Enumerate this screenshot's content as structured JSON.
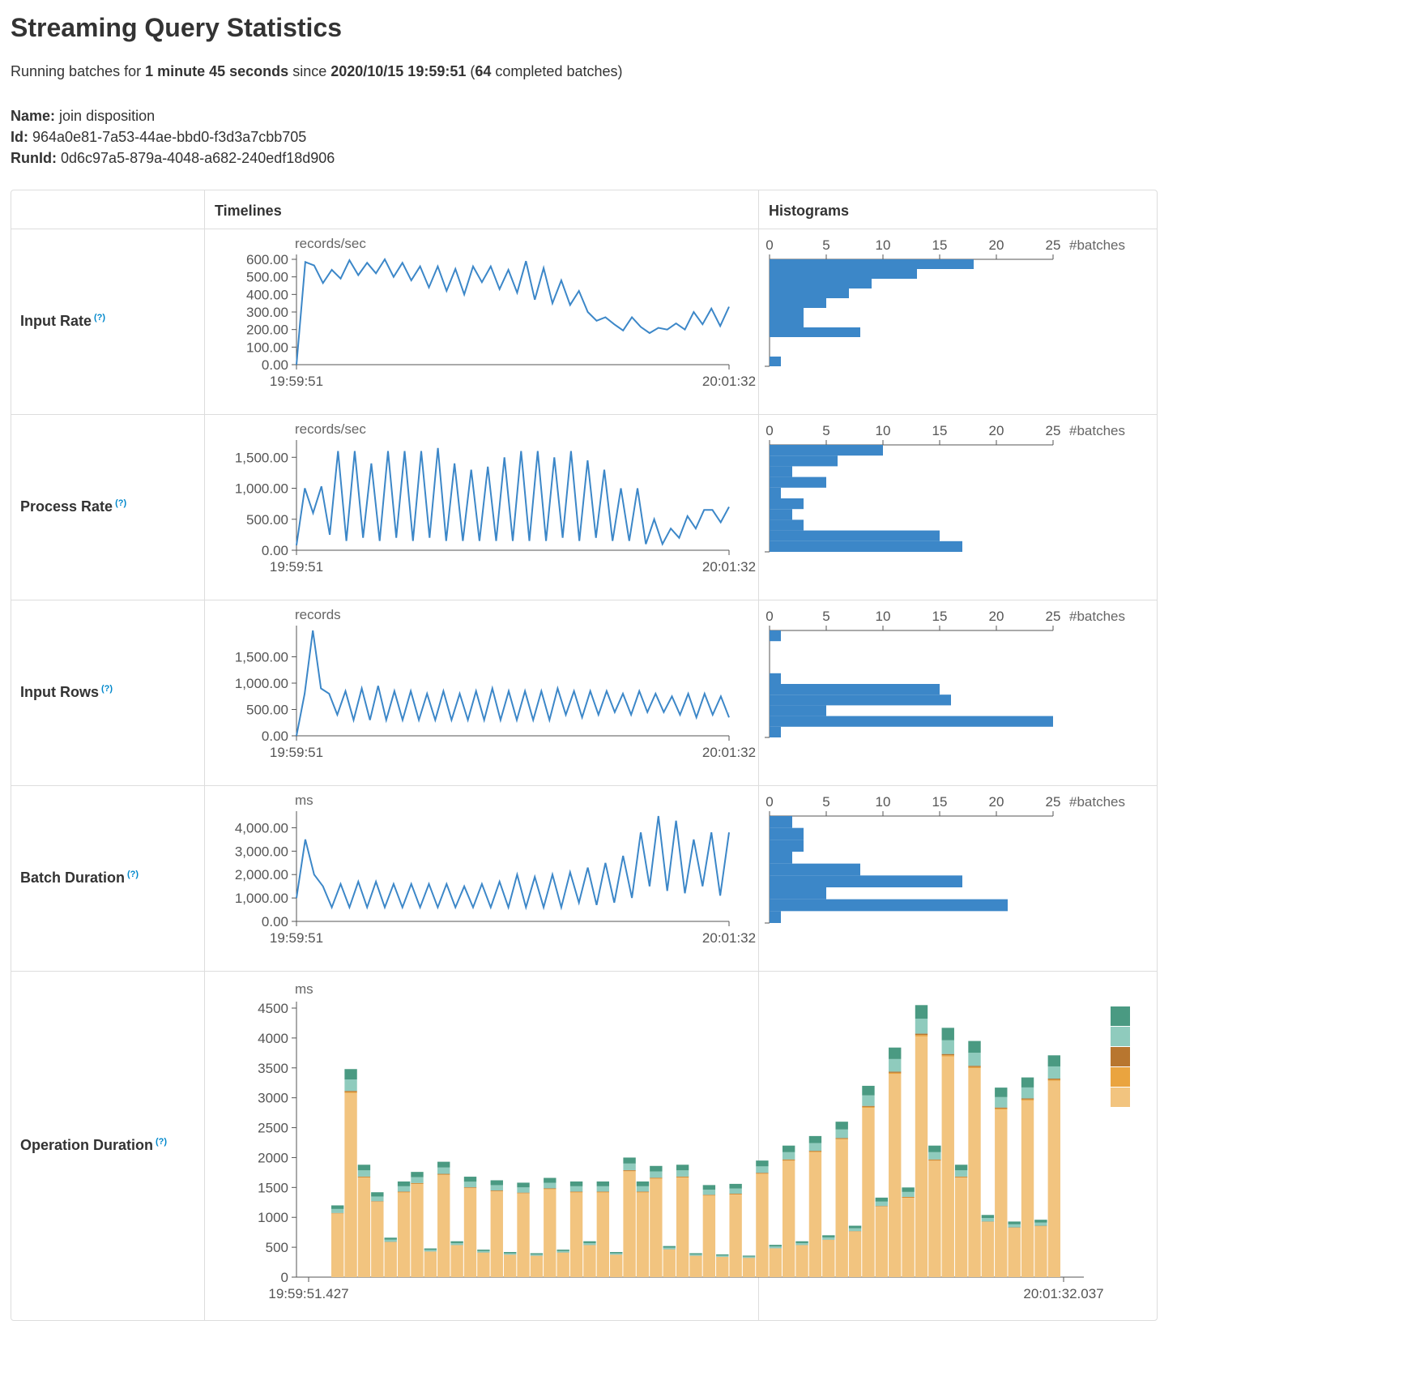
{
  "page": {
    "title": "Streaming Query Statistics",
    "summary": {
      "prefix": "Running batches for ",
      "duration": "1 minute 45 seconds",
      "since_label": " since ",
      "since": "2020/10/15 19:59:51",
      "open_paren": " (",
      "completed": "64",
      "suffix": " completed batches)"
    },
    "name_label": "Name:",
    "name_value": "join disposition",
    "id_label": "Id:",
    "id_value": "964a0e81-7a53-44ae-bbd0-f3d3a7cbb705",
    "runid_label": "RunId:",
    "runid_value": "0d6c97a5-879a-4048-a682-240edf18d906"
  },
  "table": {
    "col_timelines": "Timelines",
    "col_histograms": "Histograms",
    "help_mark": "(?)",
    "rows": [
      {
        "label": "Input Rate"
      },
      {
        "label": "Process Rate"
      },
      {
        "label": "Input Rows"
      },
      {
        "label": "Batch Duration"
      },
      {
        "label": "Operation Duration"
      }
    ]
  },
  "colors": {
    "line": "#3c87c8",
    "bar": "#3c87c8",
    "border": "#dddddd",
    "axis": "#555555",
    "stack": [
      "#f2c47f",
      "#eaa43f",
      "#b8762f",
      "#8fcbbd",
      "#4a9a82"
    ]
  },
  "chart_data": [
    {
      "type": "line",
      "name": "Input Rate",
      "ylabel": "records/sec",
      "x_tick_labels": [
        "19:59:51",
        "20:01:32"
      ],
      "ylim": [
        0,
        600
      ],
      "y_ticks": [
        0,
        100,
        200,
        300,
        400,
        500,
        600
      ],
      "y_tick_labels": [
        "0.00",
        "100.00",
        "200.00",
        "300.00",
        "400.00",
        "500.00",
        "600.00"
      ],
      "values": [
        0,
        585,
        565,
        465,
        540,
        490,
        595,
        510,
        580,
        520,
        600,
        500,
        580,
        480,
        560,
        440,
        560,
        420,
        545,
        400,
        560,
        470,
        560,
        430,
        540,
        410,
        590,
        370,
        550,
        350,
        480,
        340,
        420,
        300,
        250,
        270,
        230,
        195,
        270,
        215,
        180,
        210,
        200,
        235,
        200,
        300,
        230,
        320,
        220,
        330
      ]
    },
    {
      "type": "line",
      "name": "Process Rate",
      "ylabel": "records/sec",
      "x_tick_labels": [
        "19:59:51",
        "20:01:32"
      ],
      "ylim": [
        0,
        1700
      ],
      "y_ticks": [
        0,
        500,
        1000,
        1500
      ],
      "y_tick_labels": [
        "0.00",
        "500.00",
        "1,000.00",
        "1,500.00"
      ],
      "values": [
        80,
        1000,
        600,
        1030,
        250,
        1600,
        150,
        1600,
        200,
        1400,
        150,
        1600,
        200,
        1600,
        150,
        1600,
        200,
        1650,
        150,
        1400,
        150,
        1300,
        150,
        1350,
        150,
        1500,
        150,
        1600,
        150,
        1600,
        150,
        1500,
        200,
        1600,
        150,
        1450,
        200,
        1300,
        150,
        1000,
        150,
        1000,
        100,
        500,
        100,
        350,
        200,
        550,
        350,
        650,
        650,
        450,
        700
      ]
    },
    {
      "type": "line",
      "name": "Input Rows",
      "ylabel": "records",
      "x_tick_labels": [
        "19:59:51",
        "20:01:32"
      ],
      "ylim": [
        0,
        2000
      ],
      "y_ticks": [
        0,
        500,
        1000,
        1500
      ],
      "y_tick_labels": [
        "0.00",
        "500.00",
        "1,000.00",
        "1,500.00"
      ],
      "values": [
        0,
        800,
        2000,
        900,
        800,
        400,
        850,
        300,
        900,
        300,
        950,
        300,
        850,
        300,
        850,
        300,
        800,
        300,
        850,
        300,
        800,
        300,
        850,
        300,
        900,
        300,
        850,
        300,
        850,
        300,
        850,
        300,
        900,
        400,
        850,
        350,
        850,
        400,
        850,
        450,
        800,
        400,
        850,
        450,
        800,
        450,
        750,
        400,
        800,
        350,
        800,
        400,
        750,
        350
      ]
    },
    {
      "type": "line",
      "name": "Batch Duration",
      "ylabel": "ms",
      "x_tick_labels": [
        "19:59:51",
        "20:01:32"
      ],
      "ylim": [
        0,
        4500
      ],
      "y_ticks": [
        0,
        1000,
        2000,
        3000,
        4000
      ],
      "y_tick_labels": [
        "0.00",
        "1,000.00",
        "2,000.00",
        "3,000.00",
        "4,000.00"
      ],
      "values": [
        1000,
        3500,
        2000,
        1500,
        600,
        1600,
        600,
        1700,
        600,
        1700,
        600,
        1600,
        600,
        1600,
        600,
        1600,
        600,
        1600,
        600,
        1500,
        600,
        1600,
        600,
        1700,
        600,
        2000,
        600,
        1900,
        600,
        2000,
        600,
        2100,
        800,
        2300,
        700,
        2500,
        800,
        2800,
        1000,
        3800,
        1500,
        4500,
        1300,
        4300,
        1200,
        3500,
        1500,
        3800,
        1100,
        3800
      ]
    },
    {
      "type": "bar",
      "name": "Operation Duration",
      "ylabel": "ms",
      "x_tick_labels": [
        "19:59:51.427",
        "20:01:32.037"
      ],
      "ylim": [
        0,
        4500
      ],
      "y_ticks": [
        0,
        500,
        1000,
        1500,
        2000,
        2500,
        3000,
        3500,
        4000,
        4500
      ],
      "y_tick_labels": [
        "0",
        "500",
        "1000",
        "1500",
        "2000",
        "2500",
        "3000",
        "3500",
        "4000",
        "4500"
      ],
      "totals": [
        1200,
        3480,
        1880,
        1420,
        660,
        1600,
        1760,
        480,
        1930,
        600,
        1680,
        460,
        1620,
        420,
        1580,
        400,
        1660,
        460,
        1600,
        600,
        1600,
        420,
        2000,
        1600,
        1860,
        520,
        1880,
        400,
        1540,
        380,
        1560,
        360,
        1950,
        540,
        2200,
        600,
        2360,
        700,
        2600,
        860,
        3200,
        1330,
        3840,
        1500,
        4550,
        2200,
        4170,
        1880,
        3950,
        1040,
        3170,
        930,
        3340,
        960,
        3710
      ],
      "stack_fractions": [
        0.885,
        0.005,
        0.005,
        0.055,
        0.05
      ]
    },
    {
      "type": "bar",
      "name": "Input Rate histogram",
      "xlabel": "#batches",
      "x_ticks": [
        0,
        5,
        10,
        15,
        20,
        25
      ],
      "values": [
        18,
        13,
        9,
        7,
        5,
        3,
        3,
        8,
        0,
        0,
        1
      ]
    },
    {
      "type": "bar",
      "name": "Process Rate histogram",
      "xlabel": "#batches",
      "x_ticks": [
        0,
        5,
        10,
        15,
        20,
        25
      ],
      "values": [
        10,
        6,
        2,
        5,
        1,
        3,
        2,
        3,
        15,
        17
      ]
    },
    {
      "type": "bar",
      "name": "Input Rows histogram",
      "xlabel": "#batches",
      "x_ticks": [
        0,
        5,
        10,
        15,
        20,
        25
      ],
      "values": [
        1,
        0,
        0,
        0,
        1,
        15,
        16,
        5,
        25,
        1
      ]
    },
    {
      "type": "bar",
      "name": "Batch Duration histogram",
      "xlabel": "#batches",
      "x_ticks": [
        0,
        5,
        10,
        15,
        20,
        25
      ],
      "values": [
        2,
        3,
        3,
        2,
        8,
        17,
        5,
        21,
        1
      ]
    }
  ]
}
